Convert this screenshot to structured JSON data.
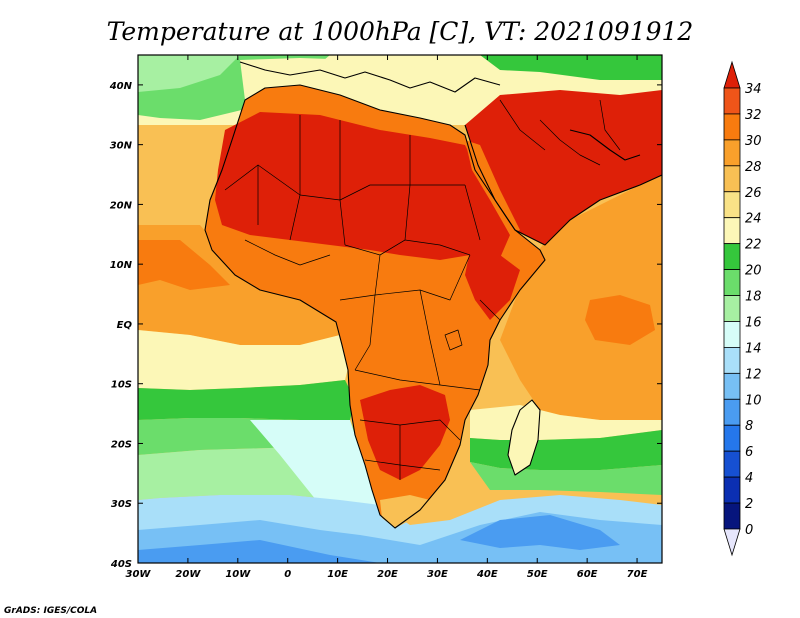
{
  "title": "Temperature at 1000hPa [C], VT: 2021091912",
  "credit": "GrADS: IGES/COLA",
  "map": {
    "variable": "Temperature at 1000hPa",
    "units": "C",
    "valid_time": "2021091912",
    "lon_range": [
      -30,
      75
    ],
    "lat_range": [
      -40,
      45
    ],
    "lon_ticks": [
      "30W",
      "20W",
      "10W",
      "0",
      "10E",
      "20E",
      "30E",
      "40E",
      "50E",
      "60E",
      "70E"
    ],
    "lat_ticks": [
      "40N",
      "30N",
      "20N",
      "10N",
      "EQ",
      "10S",
      "20S",
      "30S",
      "40S"
    ]
  },
  "colorbar": {
    "levels": [
      "34",
      "32",
      "30",
      "28",
      "26",
      "24",
      "22",
      "20",
      "18",
      "16",
      "14",
      "12",
      "10",
      "8",
      "6",
      "4",
      "2",
      "0"
    ],
    "colors": [
      "#de2008",
      "#ef5519",
      "#f87b0f",
      "#f9a02b",
      "#f8c054",
      "#f9e287",
      "#fcf7b7",
      "#35c73c",
      "#6bdd6b",
      "#a7f0a2",
      "#d6fdf8",
      "#a9dff9",
      "#77c0f5",
      "#4a9cf1",
      "#2577eb",
      "#1650d2",
      "#0b2fb2",
      "#06157d",
      "#e6e6fc"
    ]
  },
  "field_colors": {
    "ocean_cool": "#a9dff9",
    "ocean_mild": "#6bdd6b",
    "ocean_warm": "#f9a02b",
    "land_hot": "#de2008",
    "land_warm": "#f87b0f"
  }
}
